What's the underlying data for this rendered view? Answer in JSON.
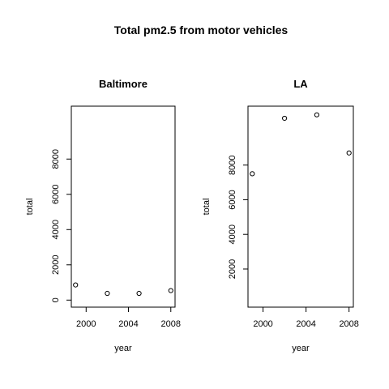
{
  "title": "Total pm2.5 from motor vehicles",
  "chart_data": [
    {
      "type": "scatter",
      "title": "Baltimore",
      "xlabel": "year",
      "ylabel": "total",
      "x": [
        1999,
        2002,
        2005,
        2008
      ],
      "y": [
        860,
        380,
        380,
        540
      ],
      "xlim": [
        1998.6,
        2008.4
      ],
      "ylim": [
        -400,
        11000
      ],
      "xticks": [
        2000,
        2004,
        2008
      ],
      "yticks": [
        0,
        2000,
        4000,
        6000,
        8000
      ],
      "grid": false
    },
    {
      "type": "scatter",
      "title": "LA",
      "xlabel": "year",
      "ylabel": "total",
      "x": [
        1999,
        2002,
        2005,
        2008
      ],
      "y": [
        7500,
        10700,
        10900,
        8700
      ],
      "xlim": [
        1998.6,
        2008.4
      ],
      "ylim": [
        -200,
        11400
      ],
      "xticks": [
        2000,
        2004,
        2008
      ],
      "yticks": [
        2000,
        4000,
        6000,
        8000
      ],
      "grid": false
    }
  ]
}
